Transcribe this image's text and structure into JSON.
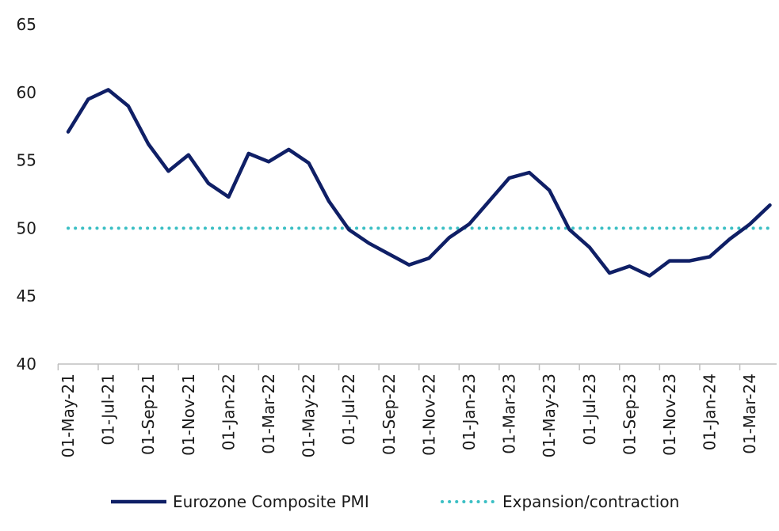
{
  "chart_data": {
    "type": "line",
    "title": "",
    "xlabel": "",
    "ylabel": "",
    "ylim": [
      40,
      65
    ],
    "yticks": [
      40,
      45,
      50,
      55,
      60,
      65
    ],
    "grid": false,
    "legend_position": "bottom",
    "x": [
      "01-May-21",
      "01-Jun-21",
      "01-Jul-21",
      "01-Aug-21",
      "01-Sep-21",
      "01-Oct-21",
      "01-Nov-21",
      "01-Dec-21",
      "01-Jan-22",
      "01-Feb-22",
      "01-Mar-22",
      "01-Apr-22",
      "01-May-22",
      "01-Jun-22",
      "01-Jul-22",
      "01-Aug-22",
      "01-Sep-22",
      "01-Oct-22",
      "01-Nov-22",
      "01-Dec-22",
      "01-Jan-23",
      "01-Feb-23",
      "01-Mar-23",
      "01-Apr-23",
      "01-May-23",
      "01-Jun-23",
      "01-Jul-23",
      "01-Aug-23",
      "01-Sep-23",
      "01-Oct-23",
      "01-Nov-23",
      "01-Dec-23",
      "01-Jan-24",
      "01-Feb-24",
      "01-Mar-24",
      "01-Apr-24"
    ],
    "xtick_labels": [
      "01-May-21",
      "01-Jul-21",
      "01-Sep-21",
      "01-Nov-21",
      "01-Jan-22",
      "01-Mar-22",
      "01-May-22",
      "01-Jul-22",
      "01-Sep-22",
      "01-Nov-22",
      "01-Jan-23",
      "01-Mar-23",
      "01-May-23",
      "01-Jul-23",
      "01-Sep-23",
      "01-Nov-23",
      "01-Jan-24",
      "01-Mar-24"
    ],
    "series": [
      {
        "name": "Eurozone Composite PMI",
        "color": "#0f1f66",
        "style": "solid",
        "values": [
          57.1,
          59.5,
          60.2,
          59.0,
          56.2,
          54.2,
          55.4,
          53.3,
          52.3,
          55.5,
          54.9,
          55.8,
          54.8,
          52.0,
          49.9,
          48.9,
          48.1,
          47.3,
          47.8,
          49.3,
          50.3,
          52.0,
          53.7,
          54.1,
          52.8,
          49.9,
          48.6,
          46.7,
          47.2,
          46.5,
          47.6,
          47.6,
          47.9,
          49.2,
          50.3,
          51.7
        ]
      },
      {
        "name": "Expansion/contraction",
        "color": "#3bbfc4",
        "style": "dotted",
        "values": [
          50,
          50,
          50,
          50,
          50,
          50,
          50,
          50,
          50,
          50,
          50,
          50,
          50,
          50,
          50,
          50,
          50,
          50,
          50,
          50,
          50,
          50,
          50,
          50,
          50,
          50,
          50,
          50,
          50,
          50,
          50,
          50,
          50,
          50,
          50,
          50
        ]
      }
    ]
  }
}
